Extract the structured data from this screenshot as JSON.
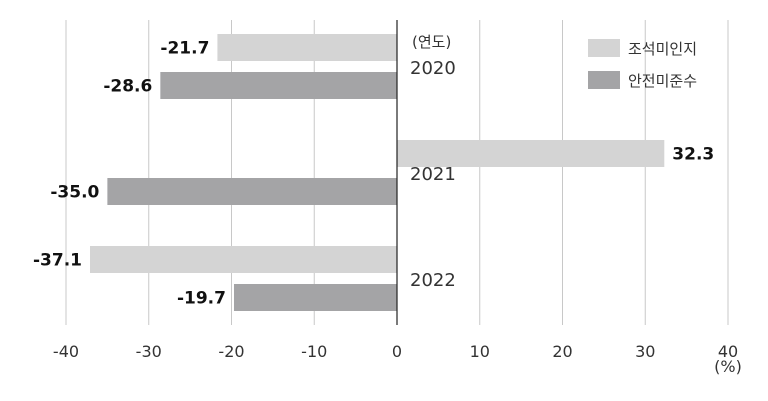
{
  "chart_data": {
    "type": "bar",
    "orientation": "horizontal",
    "categories": [
      "2020",
      "2021",
      "2022"
    ],
    "category_label": "(연도)",
    "series": [
      {
        "name": "조석미인지",
        "values": [
          -21.7,
          32.3,
          -37.1
        ],
        "color": "#d4d4d4"
      },
      {
        "name": "안전미준수",
        "values": [
          -28.6,
          -35.0,
          -19.7
        ],
        "color": "#a4a4a6"
      }
    ],
    "data_labels": [
      [
        "-21.7",
        "32.3",
        "-37.1"
      ],
      [
        "-28.6",
        "-35.0",
        "-19.7"
      ]
    ],
    "xlim": [
      -40,
      40
    ],
    "xticks": [
      "-40",
      "-30",
      "-20",
      "-10",
      "0",
      "10",
      "20",
      "30",
      "40"
    ],
    "xlabel": "(%)",
    "grid": "vertical",
    "legend": "top-right"
  }
}
